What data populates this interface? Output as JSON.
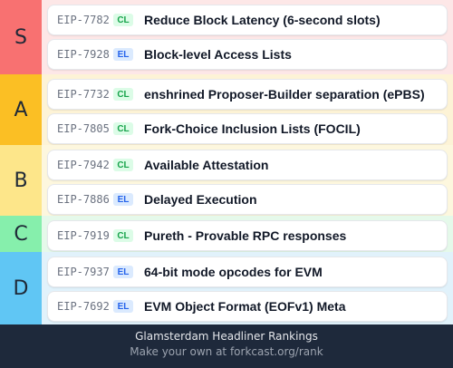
{
  "tiers": [
    {
      "label": "S",
      "label_color": "#f87171",
      "body_color": "#fde7e7",
      "items": [
        {
          "eip": "EIP-7782",
          "layer": "CL",
          "title": "Reduce Block Latency (6-second slots)"
        },
        {
          "eip": "EIP-7928",
          "layer": "EL",
          "title": "Block-level Access Lists"
        }
      ]
    },
    {
      "label": "A",
      "label_color": "#fbbf24",
      "body_color": "#fdf3d6",
      "items": [
        {
          "eip": "EIP-7732",
          "layer": "CL",
          "title": "enshrined Proposer-Builder separation (ePBS)"
        },
        {
          "eip": "EIP-7805",
          "layer": "CL",
          "title": "Fork-Choice Inclusion Lists (FOCIL)"
        }
      ]
    },
    {
      "label": "B",
      "label_color": "#fde68a",
      "body_color": "#fdf7de",
      "items": [
        {
          "eip": "EIP-7942",
          "layer": "CL",
          "title": "Available Attestation"
        },
        {
          "eip": "EIP-7886",
          "layer": "EL",
          "title": "Delayed Execution"
        }
      ]
    },
    {
      "label": "C",
      "label_color": "#86efac",
      "body_color": "#e5f9ea",
      "items": [
        {
          "eip": "EIP-7919",
          "layer": "CL",
          "title": "Pureth - Provable RPC responses"
        }
      ]
    },
    {
      "label": "D",
      "label_color": "#60c6f4",
      "body_color": "#e1f2fb",
      "items": [
        {
          "eip": "EIP-7937",
          "layer": "EL",
          "title": "64-bit mode opcodes for EVM"
        },
        {
          "eip": "EIP-7692",
          "layer": "EL",
          "title": "EVM Object Format (EOFv1) Meta"
        }
      ]
    }
  ],
  "footer": {
    "title": "Glamsterdam Headliner Rankings",
    "subtitle": "Make your own at forkcast.org/rank"
  }
}
